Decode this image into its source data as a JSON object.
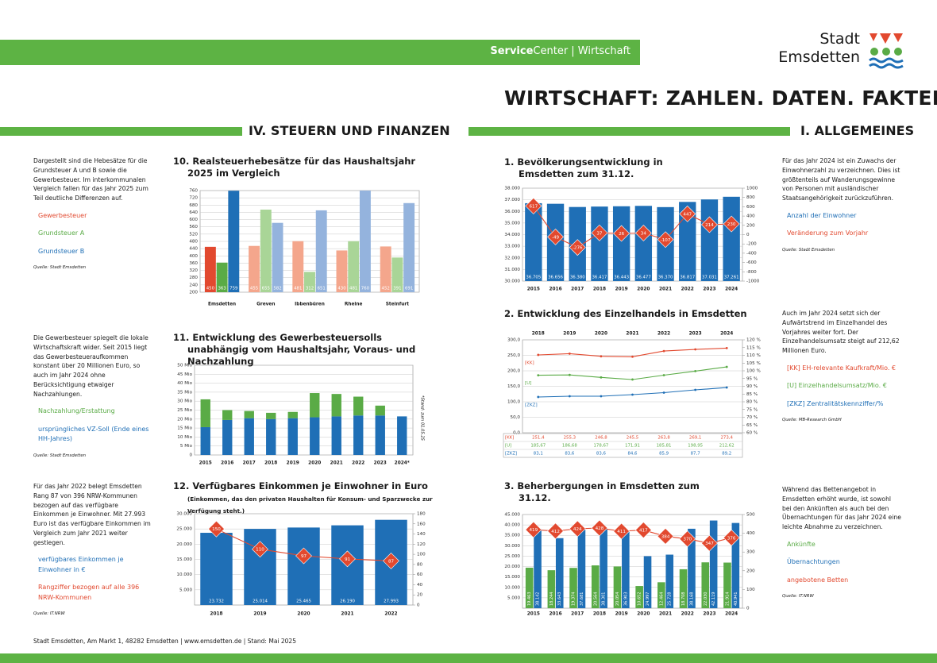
{
  "header": {
    "service": "Service",
    "center": "Center | Wirtschaft",
    "logo_top": "Stadt",
    "logo_bottom": "Emsdetten"
  },
  "title": "WIRTSCHAFT: ZAHLEN. DATEN. FAKTEN.",
  "sections": [
    "IV. STEUERN UND FINANZEN",
    "I. ALLGEMEINES"
  ],
  "footer": "Stadt Emsdetten, Am Markt 1, 48282 Emsdetten | www.emsdetten.de | Stand: Mai 2025",
  "chart_data": [
    {
      "type": "bar",
      "title": "10. Realsteuerhebesätze für das Haushaltsjahr 2025 im Vergleich",
      "description": "Dargestellt sind die Hebesätze für die Grundsteuer A und B sowie die Gewerbesteuer. Im interkommunalen Vergleich fallen für das Jahr 2025 zum Teil deutliche Differenzen auf.",
      "source": "Quelle: Stadt Emsdetten",
      "categories": [
        "Emsdetten",
        "Greven",
        "Ibbenbüren",
        "Rheine",
        "Steinfurt"
      ],
      "series": [
        {
          "name": "Gewerbesteuer",
          "color": "#e2492f",
          "colors": [
            "#e2492f",
            "#f4a68c",
            "#f4a68c",
            "#f4a68c",
            "#f4a68c"
          ],
          "values": [
            450,
            455,
            481,
            430,
            452
          ]
        },
        {
          "name": "Grundsteuer A",
          "color": "#5aab46",
          "colors": [
            "#5aab46",
            "#a9d597",
            "#a9d597",
            "#a9d597",
            "#a9d597"
          ],
          "values": [
            363,
            655,
            312,
            481,
            391
          ]
        },
        {
          "name": "Grundsteuer B",
          "color": "#1f6fb6",
          "colors": [
            "#1f6fb6",
            "#94b3dd",
            "#94b3dd",
            "#94b3dd",
            "#94b3dd"
          ],
          "values": [
            759,
            582,
            651,
            760,
            691
          ]
        }
      ],
      "ylim": [
        200,
        760
      ],
      "yticks": [
        200,
        240,
        280,
        320,
        360,
        400,
        440,
        480,
        520,
        560,
        600,
        640,
        680,
        720,
        760
      ],
      "grid": true,
      "data_labels": true
    },
    {
      "type": "stacked_bar",
      "title": "11. Entwicklung des Gewerbesteuersolls unabhängig vom Haushaltsjahr, Voraus- und Nachzahlung",
      "description": "Die Gewerbesteuer spiegelt die lokale Wirtschaftskraft wider. Seit 2015 liegt das Gewerbesteueraufkommen konstant über 20 Millionen Euro, so auch im Jahr 2024 ohne Berücksichtigung etwaiger Nachzahlungen.",
      "source": "Quelle: Stadt Emsdetten",
      "note": "*Stand: zum 01.05.25",
      "categories": [
        "2015",
        "2016",
        "2017",
        "2018",
        "2019",
        "2020",
        "2021",
        "2022",
        "2023",
        "2024*"
      ],
      "series": [
        {
          "name": "Nachzahlung/Erstattung",
          "color": "#5aab46",
          "values": [
            15.5,
            5.5,
            4,
            3.5,
            3.5,
            13.5,
            12.5,
            10.5,
            5.5,
            null
          ]
        },
        {
          "name": "ursprüngliches VZ-Soll (Ende eines HH-Jahres)",
          "color": "#1f6fb6",
          "values": [
            15.5,
            19.5,
            20.5,
            20,
            20.5,
            21,
            21.5,
            22,
            22,
            21.5
          ]
        }
      ],
      "ylim": [
        0,
        50
      ],
      "yticks": [
        0,
        {
          "value": 5,
          "label": "5 Mio"
        },
        {
          "value": 10,
          "label": "10 Mio"
        },
        {
          "value": 15,
          "label": "15 Mio"
        },
        {
          "value": 20,
          "label": "20 Mio"
        },
        {
          "value": 25,
          "label": "25 Mio"
        },
        {
          "value": 30,
          "label": "30 Mio"
        },
        {
          "value": 35,
          "label": "35 Mio"
        },
        {
          "value": 40,
          "label": "40 Mio"
        },
        {
          "value": 45,
          "label": "45 Mio"
        },
        {
          "value": 50,
          "label": "50 Mio"
        }
      ],
      "grid": true
    },
    {
      "type": "bar_line",
      "title": "12. Verfügbares Einkommen je Einwohner in Euro",
      "subtitle": "(Einkommen, das den privaten Haushalten für Konsum- und Sparzwecke zur Verfügung steht.)",
      "description": "Für das Jahr 2022 belegt Emsdetten Rang 87 von 396 NRW-Kommunen bezogen auf das verfügbare Einkommen je Einwohner. Mit 27.993 Euro ist das verfügbare Einkommen im Vergleich zum Jahr 2021 weiter gestiegen.",
      "source": "Quelle: IT.NRW",
      "categories": [
        "2018",
        "2019",
        "2020",
        "2021",
        "2022"
      ],
      "series": [
        {
          "name": "verfügbares Einkommen je Einwohner in €",
          "color": "#1f6fb6",
          "values": [
            23732,
            25014,
            25465,
            26190,
            27993
          ],
          "value_labels": [
            "23.732",
            "25.014",
            "25.465",
            "26.190",
            "27.993"
          ]
        },
        {
          "name": "Rangziffer bezogen auf alle 396 NRW-Kommunen",
          "color": "#e2492f",
          "axis": "y2",
          "values": [
            150,
            110,
            97,
            91,
            87
          ]
        }
      ],
      "ylim": [
        0,
        30000
      ],
      "yticks": [
        {
          "value": 5000,
          "label": "5.000"
        },
        {
          "value": 10000,
          "label": "10.000"
        },
        {
          "value": 15000,
          "label": "15.000"
        },
        {
          "value": 20000,
          "label": "20.000"
        },
        {
          "value": 25000,
          "label": "25.000"
        },
        {
          "value": 30000,
          "label": "30.000"
        }
      ],
      "y2lim": [
        0,
        180
      ],
      "y2ticks": [
        0,
        20,
        40,
        60,
        80,
        100,
        120,
        140,
        160,
        180
      ],
      "grid": true
    },
    {
      "type": "bar_line",
      "title": "1. Bevölkerungsentwicklung in Emsdetten zum 31.12.",
      "description": "Für das Jahr 2024 ist ein Zuwachs der Einwohnerzahl zu verzeichnen. Dies ist größtenteils auf Wanderungsgewinne von Personen mit ausländischer Staatsangehörigkeit zurückzuführen.",
      "source": "Quelle: Stadt Emsdetten",
      "categories": [
        "2015",
        "2016",
        "2017",
        "2018",
        "2019",
        "2020",
        "2021",
        "2022",
        "2023",
        "2024"
      ],
      "series": [
        {
          "name": "Anzahl der Einwohner",
          "color": "#1f6fb6",
          "values": [
            36705,
            36656,
            36380,
            36417,
            36443,
            36477,
            36370,
            36817,
            37031,
            37261
          ],
          "value_labels": [
            "36.705",
            "36.656",
            "36.380",
            "36.417",
            "36.443",
            "36.477",
            "36.370",
            "36.817",
            "37.031",
            "37.261"
          ]
        },
        {
          "name": "Veränderung zum Vorjahr",
          "color": "#e2492f",
          "axis": "y2",
          "values": [
            617,
            -49,
            -276,
            37,
            26,
            34,
            -107,
            447,
            214,
            230
          ]
        }
      ],
      "ylim": [
        30000,
        38000
      ],
      "yticks": [
        {
          "value": 30000,
          "label": "30.000"
        },
        {
          "value": 31000,
          "label": "31.000"
        },
        {
          "value": 32000,
          "label": "32.000"
        },
        {
          "value": 33000,
          "label": "33.000"
        },
        {
          "value": 34000,
          "label": "34.000"
        },
        {
          "value": 35000,
          "label": "35.000"
        },
        {
          "value": 36000,
          "label": "36.000"
        },
        {
          "value": 37000,
          "label": "37.000"
        },
        {
          "value": 38000,
          "label": "38.000"
        }
      ],
      "y2lim": [
        -1000,
        1000
      ],
      "y2ticks": [
        -1000,
        -800,
        -600,
        -400,
        -200,
        0,
        200,
        400,
        600,
        800,
        1000
      ],
      "grid": true
    },
    {
      "type": "line",
      "title": "2. Entwicklung des Einzelhandels in Emsdetten",
      "description": "Auch im Jahr 2024 setzt sich der Aufwärtstrend im Einzelhandel des Vorjahres weiter fort. Der Einzelhandelsumsatz steigt auf 212,62 Millionen Euro.",
      "source": "Quelle: MB-Research GmbH",
      "categories": [
        "2018",
        "2019",
        "2020",
        "2021",
        "2022",
        "2023",
        "2024"
      ],
      "series": [
        {
          "name": "[KK] EH-relevante Kaufkraft/Mio. €",
          "short": "[KK]",
          "color": "#e2492f",
          "values": [
            251.4,
            255.3,
            246.8,
            245.5,
            263.8,
            269.1,
            273.4
          ],
          "value_labels": [
            "251,4",
            "255,3",
            "246,8",
            "245,5",
            "263,8",
            "269,1",
            "273,4"
          ]
        },
        {
          "name": "[U] Einzelhandelsumsatz/Mio. €",
          "short": "[U]",
          "color": "#5aab46",
          "values": [
            185.67,
            186.68,
            178.67,
            171.91,
            185.81,
            198.95,
            212.62
          ],
          "value_labels": [
            "185,67",
            "186,68",
            "178,67",
            "171,91",
            "185,81",
            "198,95",
            "212,62"
          ]
        },
        {
          "name": "[ZKZ] Zentralitätskennziffer/%",
          "short": "[ZKZ]",
          "color": "#1f6fb6",
          "axis": "y2",
          "values": [
            83.1,
            83.6,
            83.6,
            84.6,
            85.9,
            87.7,
            89.2
          ],
          "value_labels": [
            "83,1",
            "83,6",
            "83,6",
            "84,6",
            "85,9",
            "87,7",
            "89,2"
          ]
        }
      ],
      "ylim": [
        0,
        300
      ],
      "yticks": [
        {
          "value": 0,
          "label": "0,0"
        },
        {
          "value": 50,
          "label": "50,0"
        },
        {
          "value": 100,
          "label": "100,0"
        },
        {
          "value": 150,
          "label": "150,0"
        },
        {
          "value": 200,
          "label": "200,0"
        },
        {
          "value": 250,
          "label": "250,0"
        },
        {
          "value": 300,
          "label": "300,0"
        }
      ],
      "y2lim": [
        60,
        120
      ],
      "y2ticks": [
        {
          "value": 60,
          "label": "60 %"
        },
        {
          "value": 65,
          "label": "65 %"
        },
        {
          "value": 70,
          "label": "70 %"
        },
        {
          "value": 75,
          "label": "75 %"
        },
        {
          "value": 80,
          "label": "80 %"
        },
        {
          "value": 85,
          "label": "85 %"
        },
        {
          "value": 90,
          "label": "90 %"
        },
        {
          "value": 95,
          "label": "95 %"
        },
        {
          "value": 100,
          "label": "100 %"
        },
        {
          "value": 105,
          "label": "105 %"
        },
        {
          "value": 110,
          "label": "110 %"
        },
        {
          "value": 115,
          "label": "115 %"
        },
        {
          "value": 120,
          "label": "120 %"
        }
      ],
      "grid": true
    },
    {
      "type": "bar_line",
      "title": "3. Beherbergungen in Emsdetten zum 31.12.",
      "description": "Während das Bettenangebot in Emsdetten erhöht wurde, ist sowohl bei den Ankünften als auch bei den Übernachtungen für das Jahr 2024 eine leichte Abnahme zu verzeichnen.",
      "source": "Quelle: IT.NRW",
      "categories": [
        "2015",
        "2016",
        "2017",
        "2018",
        "2019",
        "2020",
        "2021",
        "2022",
        "2023",
        "2024"
      ],
      "series": [
        {
          "name": "Ankünfte",
          "color": "#5aab46",
          "values": [
            19463,
            18244,
            19374,
            20564,
            20054,
            10652,
            12464,
            18708,
            22030,
            21914
          ],
          "value_labels": [
            "19.463",
            "18.244",
            "19.374",
            "20.564",
            "20.054",
            "10.652",
            "12.464",
            "18.708",
            "22.030",
            "21.914"
          ]
        },
        {
          "name": "Übernachtungen",
          "color": "#1f6fb6",
          "values": [
            38142,
            33643,
            37681,
            38301,
            36903,
            24997,
            25728,
            38168,
            42119,
            40941
          ],
          "value_labels": [
            "38.142",
            "33.643",
            "37.681",
            "38.301",
            "36.903",
            "24.997",
            "25.728",
            "38.168",
            "42.119",
            "40.941"
          ]
        },
        {
          "name": "angebotene Betten",
          "color": "#e2492f",
          "axis": "y2",
          "values": [
            419,
            412,
            424,
            428,
            411,
            417,
            384,
            370,
            347,
            376
          ]
        }
      ],
      "ylim": [
        0,
        45000
      ],
      "yticks": [
        {
          "value": 5000,
          "label": "5.000"
        },
        {
          "value": 10000,
          "label": "10.000"
        },
        {
          "value": 15000,
          "label": "15.000"
        },
        {
          "value": 20000,
          "label": "20.000"
        },
        {
          "value": 25000,
          "label": "25.000"
        },
        {
          "value": 30000,
          "label": "30.000"
        },
        {
          "value": 35000,
          "label": "35.000"
        },
        {
          "value": 40000,
          "label": "40.000"
        },
        {
          "value": 45000,
          "label": "45.000"
        }
      ],
      "y2lim": [
        0,
        500
      ],
      "y2ticks": [
        0,
        100,
        200,
        300,
        400,
        500
      ],
      "grid": true
    }
  ]
}
